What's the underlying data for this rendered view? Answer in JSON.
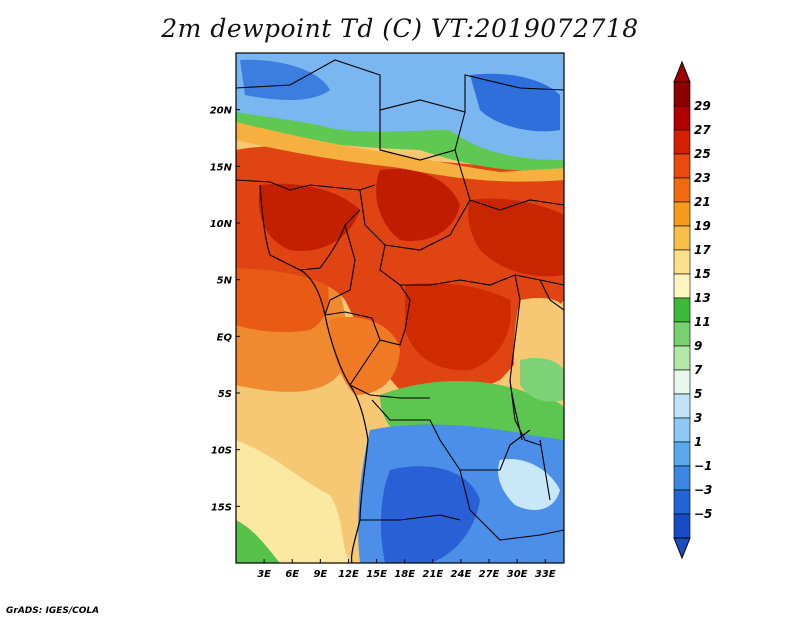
{
  "title": "2m dewpoint Td (C) VT:2019072718",
  "credit": "GrADS: IGES/COLA",
  "map": {
    "lon_range": [
      0,
      35
    ],
    "lat_range": [
      -20,
      25
    ],
    "lat_labels": [
      {
        "lat": 20,
        "label": "20N"
      },
      {
        "lat": 15,
        "label": "15N"
      },
      {
        "lat": 10,
        "label": "10N"
      },
      {
        "lat": 5,
        "label": "5N"
      },
      {
        "lat": 0,
        "label": "EQ"
      },
      {
        "lat": -5,
        "label": "5S"
      },
      {
        "lat": -10,
        "label": "10S"
      },
      {
        "lat": -15,
        "label": "15S"
      }
    ],
    "lon_labels": [
      {
        "lon": 3,
        "label": "3E"
      },
      {
        "lon": 6,
        "label": "6E"
      },
      {
        "lon": 9,
        "label": "9E"
      },
      {
        "lon": 12,
        "label": "12E"
      },
      {
        "lon": 15,
        "label": "15E"
      },
      {
        "lon": 18,
        "label": "18E"
      },
      {
        "lon": 21,
        "label": "21E"
      },
      {
        "lon": 24,
        "label": "24E"
      },
      {
        "lon": 27,
        "label": "27E"
      },
      {
        "lon": 30,
        "label": "30E"
      },
      {
        "lon": 33,
        "label": "33E"
      }
    ]
  },
  "colorbar": {
    "levels": [
      {
        "label": "29",
        "color": "#8c0000"
      },
      {
        "label": "27",
        "color": "#b00000"
      },
      {
        "label": "25",
        "color": "#d42000"
      },
      {
        "label": "23",
        "color": "#e84a10"
      },
      {
        "label": "21",
        "color": "#f26a10"
      },
      {
        "label": "19",
        "color": "#f59a1a"
      },
      {
        "label": "17",
        "color": "#f8bf48"
      },
      {
        "label": "15",
        "color": "#fce08a"
      },
      {
        "label": "13",
        "color": "#fdf5c0"
      },
      {
        "label": "11",
        "color": "#3dba3a"
      },
      {
        "label": "9",
        "color": "#78d070"
      },
      {
        "label": "7",
        "color": "#b4e8a8"
      },
      {
        "label": "5",
        "color": "#e4f8ee"
      },
      {
        "label": "3",
        "color": "#bfe3f8"
      },
      {
        "label": "1",
        "color": "#8cc8f2"
      },
      {
        "label": "−1",
        "color": "#5aa8ec"
      },
      {
        "label": "−3",
        "color": "#3a86e2"
      },
      {
        "label": "−5",
        "color": "#2264d6"
      },
      {
        "label": "",
        "color": "#184cc4"
      }
    ],
    "top_color": "#a00000",
    "bottom_color": "#1a4ec0"
  },
  "palette": {
    "ocean_south": "#f6c873",
    "ocean_far_south": "#fbeaa0",
    "gulf": "#f08030",
    "sahel_red": "#e04010",
    "deep_red": "#c01c00",
    "sahara_blue": "#6aaef0",
    "sahara_dark": "#2f6fdc",
    "green": "#4cc040",
    "angola_blue": "#2e6ee0",
    "border": "#000000"
  }
}
